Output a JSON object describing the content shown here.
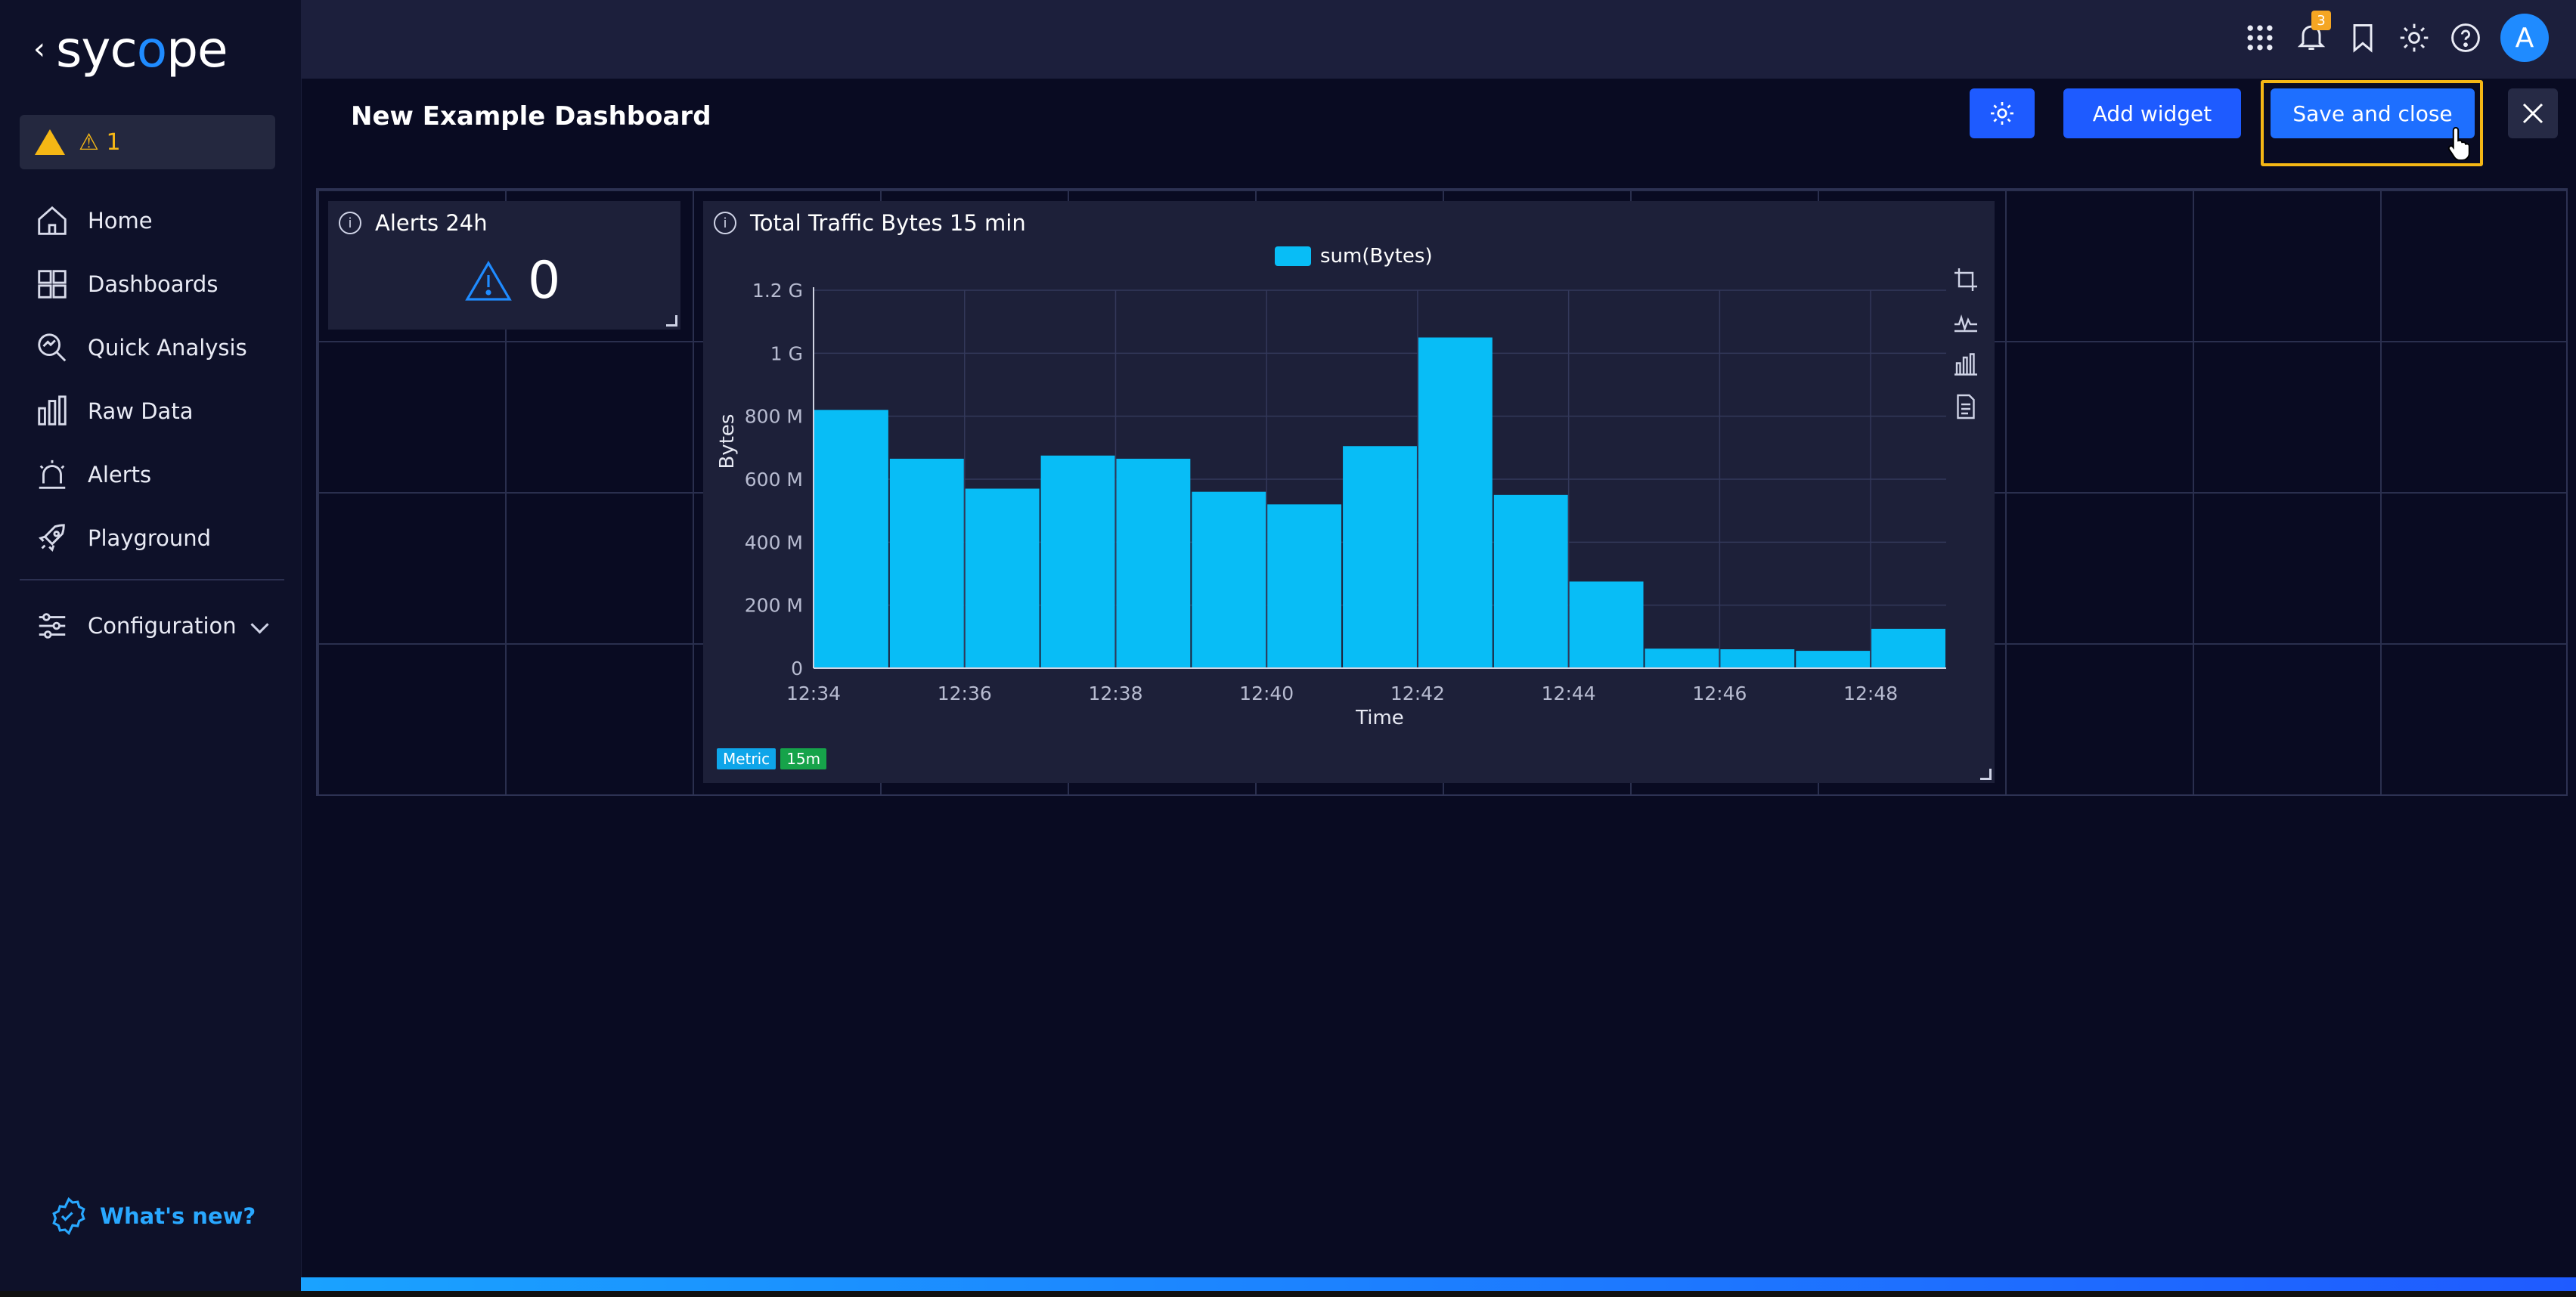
{
  "sidebar": {
    "logo_text": "sycope",
    "alert_count": "1",
    "items": [
      {
        "label": "Home",
        "icon": "home-icon"
      },
      {
        "label": "Dashboards",
        "icon": "dashboards-icon"
      },
      {
        "label": "Quick Analysis",
        "icon": "quick-analysis-icon"
      },
      {
        "label": "Raw Data",
        "icon": "raw-data-icon"
      },
      {
        "label": "Alerts",
        "icon": "alerts-icon"
      },
      {
        "label": "Playground",
        "icon": "rocket-icon"
      }
    ],
    "configuration_label": "Configuration",
    "whats_new_label": "What's new?"
  },
  "topbar": {
    "notification_badge": "3",
    "avatar_initial": "A"
  },
  "dashboard": {
    "title": "New Example Dashboard",
    "add_widget_label": "Add widget",
    "save_close_label": "Save and close"
  },
  "widgets": {
    "alerts": {
      "title": "Alerts 24h",
      "value": "0"
    },
    "traffic": {
      "title": "Total Traffic Bytes 15 min",
      "tag_metric": "Metric",
      "tag_interval": "15m"
    }
  },
  "colors": {
    "accent": "#1e5bff",
    "bar": "#08bdf6",
    "warning": "#f5b715"
  },
  "chart_data": {
    "type": "bar",
    "title": "Total Traffic Bytes 15 min",
    "xlabel": "Time",
    "ylabel": "Bytes",
    "legend": "top",
    "grid": true,
    "x_tick_labels": [
      "12:34",
      "12:36",
      "12:38",
      "12:40",
      "12:42",
      "12:44",
      "12:46",
      "12:48"
    ],
    "y_tick_labels": [
      "0",
      "200 M",
      "400 M",
      "600 M",
      "800 M",
      "1 G",
      "1.2 G"
    ],
    "y_ticks": [
      0,
      200000000,
      400000000,
      600000000,
      800000000,
      1000000000,
      1200000000
    ],
    "ylim": [
      0,
      1200000000
    ],
    "categories": [
      "12:34",
      "12:35",
      "12:36",
      "12:37",
      "12:38",
      "12:39",
      "12:40",
      "12:41",
      "12:42",
      "12:43",
      "12:44",
      "12:45",
      "12:46",
      "12:47",
      "12:48"
    ],
    "series": [
      {
        "name": "sum(Bytes)",
        "values": [
          820000000,
          665000000,
          570000000,
          675000000,
          665000000,
          560000000,
          520000000,
          705000000,
          1050000000,
          550000000,
          275000000,
          62000000,
          60000000,
          55000000,
          125000000
        ]
      }
    ]
  }
}
